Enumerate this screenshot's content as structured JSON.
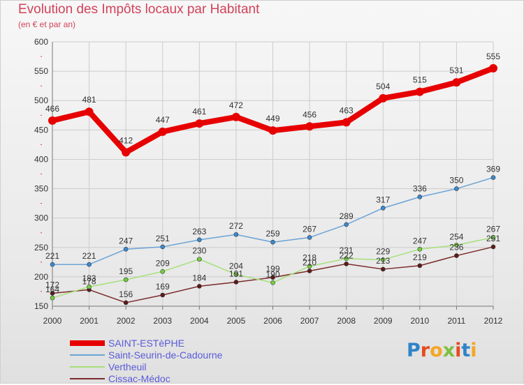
{
  "title": "Evolution des Impôts locaux par Habitant",
  "subtitle": "(en € et par an)",
  "logo": {
    "text": "Proxiti",
    "colors": [
      "#2f84c8",
      "#e84a1f",
      "#f5a623",
      "#7fbf3f",
      "#e84a1f",
      "#2f84c8",
      "#f5a623"
    ]
  },
  "colors": {
    "title": "#d2425a",
    "axis_text": "#333333",
    "legend_text": "#5a5ad8",
    "grid": "#cccccc",
    "axis": "#777777",
    "tick_marks": "#d2425a"
  },
  "chart_data": {
    "type": "line",
    "title": "Evolution des Impôts locaux par Habitant",
    "subtitle": "(en € et par an)",
    "xlabel": "",
    "ylabel": "",
    "x": [
      "2000",
      "2001",
      "2002",
      "2003",
      "2004",
      "2005",
      "2006",
      "2007",
      "2008",
      "2009",
      "2010",
      "2011",
      "2012"
    ],
    "ylim": [
      150,
      600
    ],
    "yticks": [
      150,
      200,
      250,
      300,
      350,
      400,
      450,
      500,
      550,
      600
    ],
    "grid": true,
    "legend_placement": "bottom-left",
    "series": [
      {
        "name": "SAINT-ESTèPHE",
        "values": [
          466,
          481,
          412,
          447,
          461,
          472,
          449,
          456,
          463,
          504,
          515,
          531,
          555
        ],
        "color": "#e60000",
        "marker": "#e60000",
        "width": 8,
        "radius": 6,
        "labels": "above"
      },
      {
        "name": "Saint-Seurin-de-Cadourne",
        "values": [
          221,
          221,
          247,
          251,
          263,
          272,
          259,
          267,
          289,
          317,
          336,
          350,
          369
        ],
        "color": "#6ba3d6",
        "marker": "#3a8ad0",
        "width": 1.5,
        "radius": 3,
        "labels": "above"
      },
      {
        "name": "Vertheuil",
        "values": [
          164,
          183,
          195,
          209,
          230,
          204,
          190,
          218,
          231,
          229,
          247,
          254,
          267
        ],
        "color": "#a6e07a",
        "marker": "#72d040",
        "width": 1.5,
        "radius": 3,
        "labels": "above"
      },
      {
        "name": "Cissac-Médoc",
        "values": [
          172,
          178,
          156,
          169,
          184,
          191,
          199,
          210,
          222,
          213,
          219,
          236,
          251
        ],
        "color": "#7a2a2a",
        "marker": "#5c1a1a",
        "width": 1.5,
        "radius": 3,
        "labels": "above"
      }
    ]
  }
}
